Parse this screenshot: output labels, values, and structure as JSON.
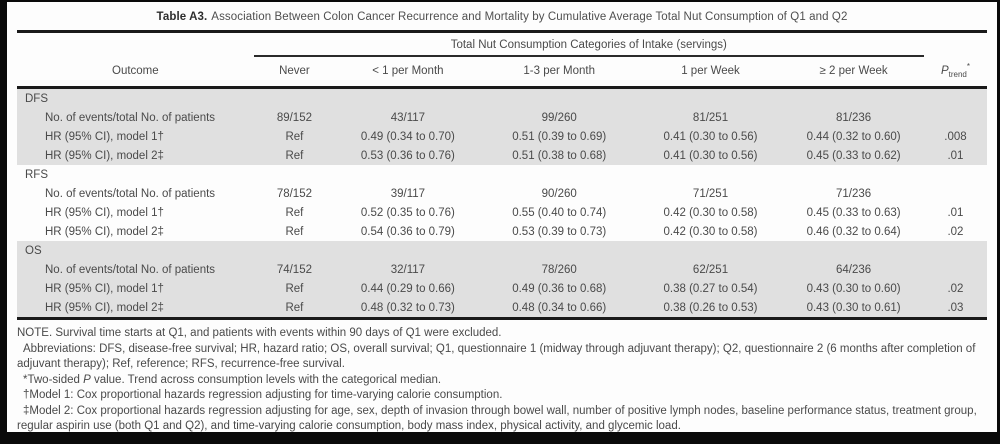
{
  "colors": {
    "shaded_row": "#e0e0e0",
    "rule": "#1a1a1a",
    "text": "#4a4a4a",
    "frame": "#0a0a0a"
  },
  "title": {
    "label": "Table A3.",
    "text": "Association Between Colon Cancer Recurrence and Mortality by Cumulative Average Total Nut Consumption of Q1 and Q2"
  },
  "table": {
    "span_header": "Total Nut Consumption Categories of Intake (servings)",
    "columns": [
      "Outcome",
      "Never",
      "< 1 per Month",
      "1-3 per Month",
      "1 per Week",
      "≥ 2 per Week"
    ],
    "ptrend": {
      "p": "P",
      "sub": "trend",
      "sup": "*"
    },
    "sections": [
      {
        "name": "DFS",
        "shaded": true,
        "rows": [
          {
            "label": "No. of events/total No. of patients",
            "values": [
              "89/152",
              "43/117",
              "99/260",
              "81/251",
              "81/236"
            ],
            "ptrend": ""
          },
          {
            "label": "HR (95% CI), model 1†",
            "values": [
              "Ref",
              "0.49 (0.34 to 0.70)",
              "0.51 (0.39 to 0.69)",
              "0.41 (0.30 to 0.56)",
              "0.44 (0.32 to 0.60)"
            ],
            "ptrend": ".008"
          },
          {
            "label": "HR (95% CI), model 2‡",
            "values": [
              "Ref",
              "0.53 (0.36 to 0.76)",
              "0.51 (0.38 to 0.68)",
              "0.41 (0.30 to 0.56)",
              "0.45 (0.33 to 0.62)"
            ],
            "ptrend": ".01"
          }
        ]
      },
      {
        "name": "RFS",
        "shaded": false,
        "rows": [
          {
            "label": "No. of events/total No. of patients",
            "values": [
              "78/152",
              "39/117",
              "90/260",
              "71/251",
              "71/236"
            ],
            "ptrend": ""
          },
          {
            "label": "HR (95% CI), model 1†",
            "values": [
              "Ref",
              "0.52 (0.35 to 0.76)",
              "0.55 (0.40 to 0.74)",
              "0.42 (0.30 to 0.58)",
              "0.45 (0.33 to 0.63)"
            ],
            "ptrend": ".01"
          },
          {
            "label": "HR (95% CI), model 2‡",
            "values": [
              "Ref",
              "0.54 (0.36 to 0.79)",
              "0.53 (0.39 to 0.73)",
              "0.42 (0.30 to 0.58)",
              "0.46 (0.32 to 0.64)"
            ],
            "ptrend": ".02"
          }
        ]
      },
      {
        "name": "OS",
        "shaded": true,
        "rows": [
          {
            "label": "No. of events/total No. of patients",
            "values": [
              "74/152",
              "32/117",
              "78/260",
              "62/251",
              "64/236"
            ],
            "ptrend": ""
          },
          {
            "label": "HR (95% CI), model 1†",
            "values": [
              "Ref",
              "0.44 (0.29 to 0.66)",
              "0.49 (0.36 to 0.68)",
              "0.38 (0.27 to 0.54)",
              "0.43 (0.30 to 0.60)"
            ],
            "ptrend": ".02"
          },
          {
            "label": "HR (95% CI), model 2‡",
            "values": [
              "Ref",
              "0.48 (0.32 to 0.73)",
              "0.48 (0.34 to 0.66)",
              "0.38 (0.26 to 0.53)",
              "0.43 (0.30 to 0.61)"
            ],
            "ptrend": ".03"
          }
        ]
      }
    ]
  },
  "footnotes": {
    "note": "NOTE. Survival time starts at Q1, and patients with events within 90 days of Q1 were excluded.",
    "abbreviations": "Abbreviations: DFS, disease-free survival; HR, hazard ratio; OS, overall survival; Q1, questionnaire 1 (midway through adjuvant therapy); Q2, questionnaire 2 (6 months after completion of adjuvant therapy); Ref, reference; RFS, recurrence-free survival.",
    "asterisk_prefix": "*Two-sided ",
    "asterisk_italic": "P",
    "asterisk_suffix": " value. Trend across consumption levels with the categorical median.",
    "dagger": "†Model 1: Cox proportional hazards regression adjusting for time-varying calorie consumption.",
    "double_dagger": "‡Model 2: Cox proportional hazards regression adjusting for age, sex, depth of invasion through bowel wall, number of positive lymph nodes, baseline performance status, treatment group, regular aspirin use (both Q1 and Q2), and time-varying calorie consumption, body mass index, physical activity, and glycemic load."
  }
}
